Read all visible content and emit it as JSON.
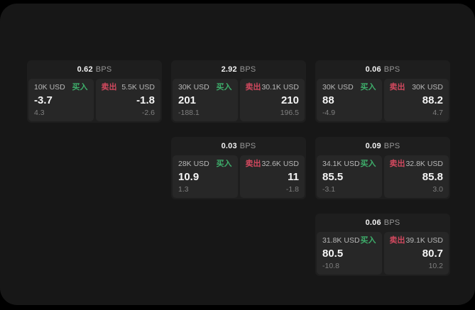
{
  "colors": {
    "surface": "#171717",
    "card": "#1E1E1E",
    "panel": "#272727",
    "buy": "#3EAE6B",
    "sell": "#D0485E"
  },
  "labels": {
    "bps": "BPS",
    "buy": "买入",
    "sell": "卖出"
  },
  "cards": [
    {
      "bps": "0.62",
      "buy": {
        "amount": "10K USD",
        "value": "-3.7",
        "delta": "4.3"
      },
      "sell": {
        "amount": "5.5K USD",
        "value": "-1.8",
        "delta": "-2.6"
      }
    },
    {
      "bps": "2.92",
      "buy": {
        "amount": "30K USD",
        "value": "201",
        "delta": "-188.1"
      },
      "sell": {
        "amount": "30.1K USD",
        "value": "210",
        "delta": "196.5"
      }
    },
    {
      "bps": "0.06",
      "buy": {
        "amount": "30K USD",
        "value": "88",
        "delta": "-4.9"
      },
      "sell": {
        "amount": "30K USD",
        "value": "88.2",
        "delta": "4.7"
      }
    },
    {
      "bps": "0.03",
      "buy": {
        "amount": "28K USD",
        "value": "10.9",
        "delta": "1.3"
      },
      "sell": {
        "amount": "32.6K USD",
        "value": "11",
        "delta": "-1.8"
      }
    },
    {
      "bps": "0.09",
      "buy": {
        "amount": "34.1K USD",
        "value": "85.5",
        "delta": "-3.1"
      },
      "sell": {
        "amount": "32.8K USD",
        "value": "85.8",
        "delta": "3.0"
      }
    },
    {
      "bps": "0.06",
      "buy": {
        "amount": "31.8K USD",
        "value": "80.5",
        "delta": "-10.8"
      },
      "sell": {
        "amount": "39.1K USD",
        "value": "80.7",
        "delta": "10.2"
      }
    }
  ]
}
